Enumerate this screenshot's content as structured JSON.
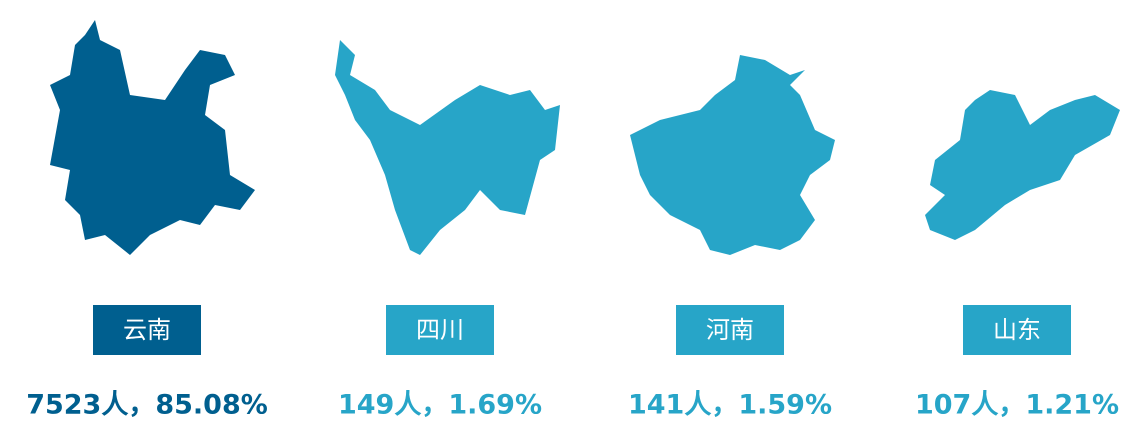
{
  "items": [
    {
      "name": "云南",
      "stat": "7523人，85.08%",
      "color": "#005f8f"
    },
    {
      "name": "四川",
      "stat": "149人，1.69%",
      "color": "#27a5c8"
    },
    {
      "name": "河南",
      "stat": "141人，1.59%",
      "color": "#27a5c8"
    },
    {
      "name": "山东",
      "stat": "107人，1.21%",
      "color": "#27a5c8"
    }
  ]
}
